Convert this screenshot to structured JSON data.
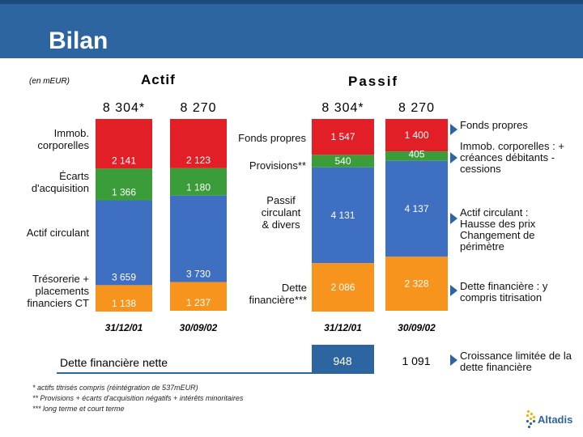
{
  "title": "Bilan",
  "unit": "(en mEUR)",
  "chart_data": {
    "type": "bar",
    "subtype": "stacked",
    "title": "Bilan",
    "unit": "(en mEUR)",
    "actif": {
      "heading": "Actif",
      "totals": [
        "8 304*",
        "8 270"
      ],
      "categories": [
        "31/12/01",
        "30/09/02"
      ],
      "series": [
        {
          "name": "Immob. corporelles",
          "values": [
            2141,
            2123
          ],
          "labels": [
            "2 141",
            "2 123"
          ],
          "color": "#e21e26"
        },
        {
          "name": "Écarts d'acquisition",
          "values": [
            1366,
            1180
          ],
          "labels": [
            "1 366",
            "1 180"
          ],
          "color": "#3a9d3a"
        },
        {
          "name": "Actif circulant",
          "values": [
            3659,
            3730
          ],
          "labels": [
            "3 659",
            "3 730"
          ],
          "color": "#3f6fc0"
        },
        {
          "name": "Trésorerie + placements financiers CT",
          "values": [
            1138,
            1237
          ],
          "labels": [
            "1 138",
            "1 237"
          ],
          "color": "#f7941d"
        }
      ]
    },
    "passif": {
      "heading": "Passif",
      "totals": [
        "8 304*",
        "8 270"
      ],
      "categories": [
        "31/12/01",
        "30/09/02"
      ],
      "series": [
        {
          "name": "Fonds propres",
          "values": [
            1547,
            1400
          ],
          "labels": [
            "1 547",
            "1 400"
          ],
          "color": "#e21e26"
        },
        {
          "name": "Provisions**",
          "values": [
            540,
            405
          ],
          "labels": [
            "540",
            "405"
          ],
          "color": "#3a9d3a"
        },
        {
          "name": "Passif circulant & divers",
          "values": [
            4131,
            4137
          ],
          "labels": [
            "4 131",
            "4 137"
          ],
          "color": "#3f6fc0"
        },
        {
          "name": "Dette financière***",
          "values": [
            2086,
            2328
          ],
          "labels": [
            "2 086",
            "2 328"
          ],
          "color": "#f7941d"
        }
      ],
      "dette_nette": {
        "label": "Dette financière nette",
        "values": [
          "948",
          "1 091"
        ],
        "color": "#2d65a0"
      }
    }
  },
  "notes": [
    "Fonds propres",
    "Immob. corporelles : + créances débitants - cessions",
    "Actif circulant : Hausse des prix Changement de périmètre",
    "Dette financière : y compris titrisation",
    "Croissance limitée de la dette financière"
  ],
  "footnotes": [
    "* actifs titrisés compris (réintégration de 537mEUR)",
    "** Provisions + écarts d'acquisition négatifs + intérêts minoritaires",
    "*** long terme et court terme"
  ],
  "logo": {
    "text": "Altadis"
  },
  "colors": {
    "header": "#2d65a0",
    "red": "#e21e26",
    "green": "#3a9d3a",
    "blue": "#3f6fc0",
    "orange": "#f7941d"
  }
}
